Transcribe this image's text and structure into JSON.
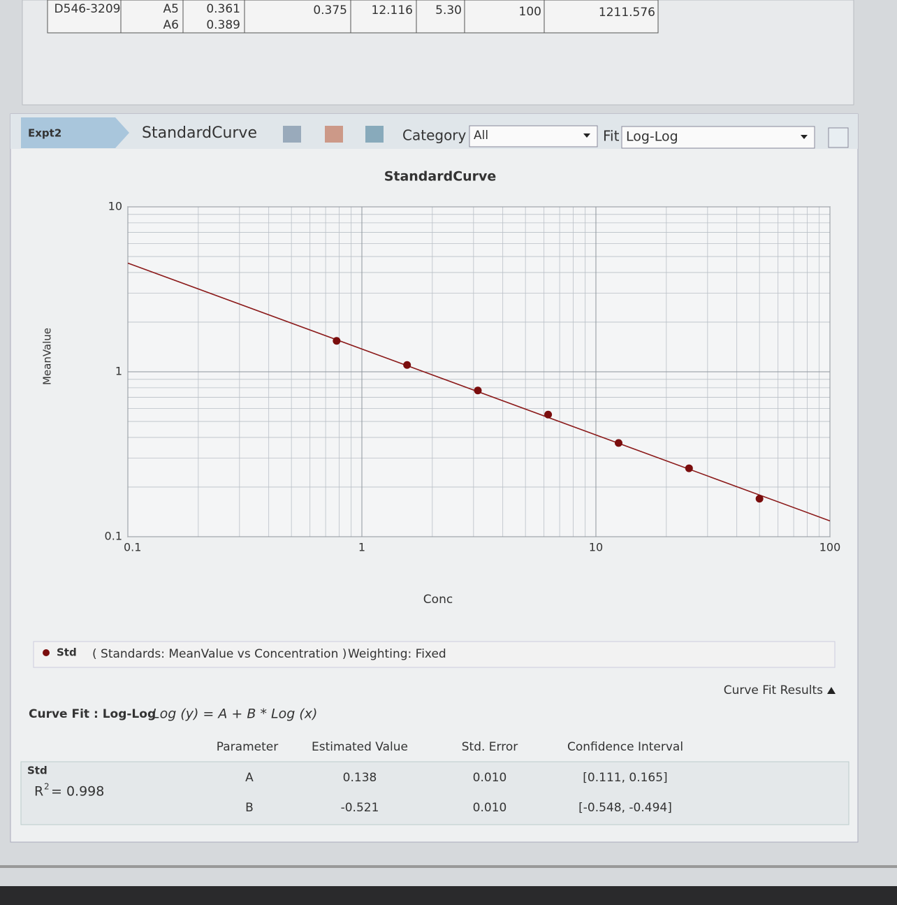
{
  "top_table": {
    "rows": [
      [
        "D546-3209",
        "A5",
        "0.361",
        "0.375",
        "12.116",
        "5.30",
        "100",
        "1211.576"
      ],
      [
        "A6",
        "0.389"
      ]
    ]
  },
  "toolbar": {
    "tab": "Expt2",
    "view": "StandardCurve",
    "category_label": "Category",
    "category": "All",
    "fit_label": "Fit",
    "fit": "Log-Log"
  },
  "chart_data": {
    "type": "scatter",
    "title": "StandardCurve",
    "x_label": "Conc",
    "y_label": "MeanValue",
    "x_scale": "log",
    "y_scale": "log",
    "xlim": [
      0.1,
      100
    ],
    "ylim": [
      0.1,
      10
    ],
    "xticks": [
      0.1,
      1,
      10,
      100
    ],
    "yticks": [
      0.1,
      1,
      10
    ],
    "grid": true,
    "fit_color": "#8b1a1a",
    "series": [
      {
        "name": "Std",
        "color": "#7a0d0d",
        "x": [
          0.78,
          1.56,
          3.13,
          6.25,
          12.5,
          25,
          50
        ],
        "values": [
          1.54,
          1.1,
          0.77,
          0.55,
          0.37,
          0.26,
          0.17
        ]
      }
    ]
  },
  "legend": {
    "description": "( Standards: MeanValue vs Concentration )",
    "weighting": "Weighting: Fixed"
  },
  "curve_fit": {
    "toggle": "Curve Fit Results",
    "label": "Curve Fit : Log-Log",
    "equation": "Log (y) = A + B * Log (x)",
    "headers": [
      "Parameter",
      "Estimated Value",
      "Std. Error",
      "Confidence Interval"
    ],
    "group": "Std",
    "r2_symbol": "R",
    "r2_exponent": "2",
    "r2_value": "= 0.998",
    "rows": [
      [
        "A",
        "0.138",
        "0.010",
        "[0.111, 0.165]"
      ],
      [
        "B",
        "-0.521",
        "0.010",
        "[-0.548, -0.494]"
      ]
    ]
  }
}
